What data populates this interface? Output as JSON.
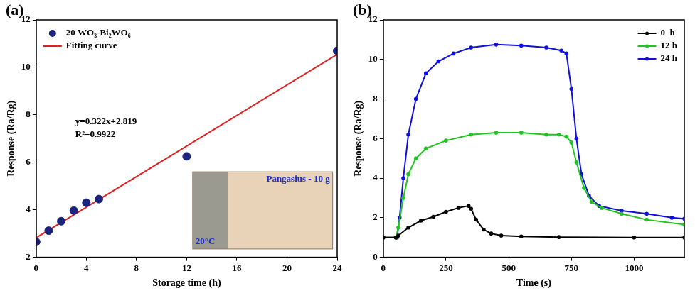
{
  "chart_data": [
    {
      "type": "scatter",
      "panel_label": "(a)",
      "x_label": "Storage time (h)",
      "y_label": "Response (Ra/Rg)",
      "xlim": [
        0,
        24
      ],
      "xticks": [
        0,
        4,
        8,
        12,
        16,
        20,
        24
      ],
      "ylim": [
        2,
        12
      ],
      "yticks": [
        2,
        4,
        6,
        8,
        10,
        12
      ],
      "grid": false,
      "legend": "upper left",
      "series": [
        {
          "name": "20 WO₃-Bi₂WO₆",
          "type": "scatter",
          "color": "#1a237e",
          "marker": "circle",
          "x": [
            0,
            1,
            2,
            3,
            4,
            5,
            12,
            24
          ],
          "values": [
            2.65,
            3.12,
            3.52,
            3.97,
            4.3,
            4.45,
            6.25,
            10.7
          ]
        },
        {
          "name": "Fitting curve",
          "type": "line",
          "color": "#e02020",
          "marker": "none",
          "line_style": "solid",
          "x": [
            0,
            24
          ],
          "values": [
            2.82,
            10.55
          ]
        }
      ],
      "annotations": [
        {
          "text": "y=0.322x+2.819"
        },
        {
          "text": "R²=0.9922"
        }
      ],
      "inset_labels": [
        "Pangasius - 10 g",
        "20°C"
      ]
    },
    {
      "type": "line",
      "panel_label": "(b)",
      "x_label": "Time (s)",
      "y_label": "Response (Ra/Rg)",
      "xlim": [
        0,
        1200
      ],
      "xticks": [
        0,
        250,
        500,
        750,
        1000
      ],
      "ylim": [
        0,
        12
      ],
      "yticks": [
        0,
        2,
        4,
        6,
        8,
        10,
        12
      ],
      "grid": false,
      "legend": "upper right",
      "series": [
        {
          "name": "0  h",
          "type": "line",
          "color": "#000000",
          "marker": "circle",
          "line_style": "solid",
          "x": [
            0,
            50,
            60,
            100,
            150,
            200,
            250,
            300,
            340,
            350,
            370,
            400,
            430,
            470,
            550,
            700,
            1000,
            1200
          ],
          "values": [
            1,
            1,
            1.1,
            1.5,
            1.85,
            2.05,
            2.3,
            2.5,
            2.6,
            2.45,
            1.9,
            1.4,
            1.2,
            1.1,
            1.05,
            1.02,
            1.0,
            1.0
          ]
        },
        {
          "name": "12 h",
          "type": "line",
          "color": "#22c322",
          "marker": "circle",
          "line_style": "solid",
          "x": [
            0,
            50,
            60,
            80,
            100,
            130,
            170,
            250,
            350,
            450,
            550,
            650,
            700,
            730,
            750,
            770,
            800,
            830,
            870,
            950,
            1050,
            1200
          ],
          "values": [
            1,
            1,
            1.5,
            3,
            4.2,
            5.0,
            5.5,
            5.9,
            6.2,
            6.3,
            6.3,
            6.2,
            6.2,
            6.1,
            5.8,
            4.8,
            3.5,
            2.8,
            2.5,
            2.2,
            1.9,
            1.65
          ]
        },
        {
          "name": "24 h",
          "type": "line",
          "color": "#1010dd",
          "marker": "circle",
          "line_style": "solid",
          "x": [
            0,
            55,
            65,
            80,
            100,
            130,
            170,
            220,
            280,
            350,
            450,
            550,
            650,
            710,
            730,
            750,
            770,
            790,
            820,
            860,
            950,
            1050,
            1150,
            1200
          ],
          "values": [
            1,
            1,
            2,
            4,
            6.2,
            8.0,
            9.3,
            9.9,
            10.3,
            10.6,
            10.75,
            10.7,
            10.6,
            10.45,
            10.3,
            8.5,
            6.0,
            4.2,
            3.1,
            2.6,
            2.35,
            2.2,
            2.0,
            1.95
          ]
        }
      ]
    }
  ]
}
